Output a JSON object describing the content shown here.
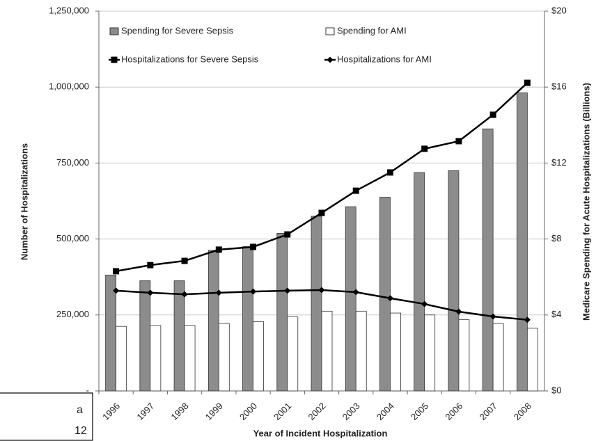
{
  "chart_data": {
    "type": "bar",
    "x_label": "Year of Incident Hospitalization",
    "y_label": "Number of Hospitalizations",
    "y2_label": "Medicare Spending for Acute Hospitalizations (Billions)",
    "categories": [
      "1996",
      "1997",
      "1998",
      "1999",
      "2000",
      "2001",
      "2002",
      "2003",
      "2004",
      "2005",
      "2006",
      "2007",
      "2008"
    ],
    "series": [
      {
        "name": "Spending for Severe Sepsis",
        "type": "bar",
        "axis": "y2",
        "color": "#8c8c8c",
        "values": [
          6.1,
          5.8,
          5.8,
          7.4,
          7.6,
          8.3,
          9.2,
          9.7,
          10.2,
          11.5,
          11.6,
          13.8,
          15.7
        ]
      },
      {
        "name": "Spending for AMI",
        "type": "bar",
        "axis": "y2",
        "color": "#ffffff",
        "values": [
          3.4,
          3.45,
          3.45,
          3.55,
          3.65,
          3.9,
          4.2,
          4.2,
          4.1,
          4.0,
          3.75,
          3.55,
          3.3
        ]
      },
      {
        "name": "Hospitalizations for Severe Sepsis",
        "type": "line",
        "marker": "square",
        "color": "#000000",
        "values": [
          394000,
          414000,
          428000,
          465000,
          474000,
          515000,
          586000,
          659000,
          719000,
          797000,
          822000,
          909000,
          1014000
        ]
      },
      {
        "name": "Hospitalizations for AMI",
        "type": "line",
        "marker": "diamond",
        "color": "#000000",
        "values": [
          330000,
          323000,
          318000,
          323000,
          327000,
          330000,
          332000,
          325000,
          305000,
          286000,
          261000,
          245000,
          234000
        ]
      }
    ],
    "ylim": [
      0,
      1250000
    ],
    "yticks": [
      {
        "value": 0,
        "label": "-"
      },
      {
        "value": 250000,
        "label": "250,000"
      },
      {
        "value": 500000,
        "label": "500,000"
      },
      {
        "value": 750000,
        "label": "750,000"
      },
      {
        "value": 1000000,
        "label": "1,000,000"
      },
      {
        "value": 1250000,
        "label": "1,250,000"
      }
    ],
    "y2lim": [
      0,
      20
    ],
    "y2ticks": [
      {
        "value": 0,
        "label": "$0"
      },
      {
        "value": 4,
        "label": "$4"
      },
      {
        "value": 8,
        "label": "$8"
      },
      {
        "value": 12,
        "label": "$12"
      },
      {
        "value": 16,
        "label": "$16"
      },
      {
        "value": 20,
        "label": "$20"
      }
    ],
    "grid": true
  },
  "annotation_box": {
    "lines": [
      "a",
      "12"
    ]
  }
}
